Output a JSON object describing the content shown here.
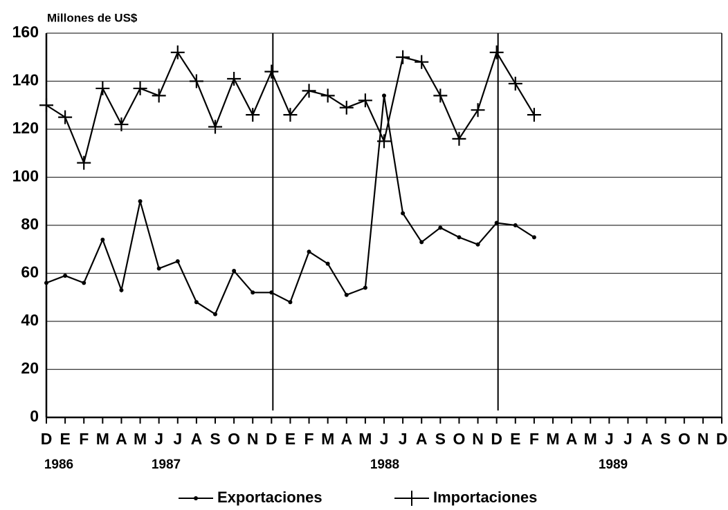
{
  "chart_data": {
    "type": "line",
    "y_axis_label": "Millones de US$",
    "categories": [
      "D",
      "E",
      "F",
      "M",
      "A",
      "M",
      "J",
      "J",
      "A",
      "S",
      "O",
      "N",
      "D",
      "E",
      "F",
      "M",
      "A",
      "M",
      "J",
      "J",
      "A",
      "S",
      "O",
      "N",
      "D",
      "E",
      "F",
      "M",
      "A",
      "M",
      "J",
      "J",
      "A",
      "S",
      "O",
      "N",
      "D"
    ],
    "x_groups": [
      "1986",
      "1987",
      "1988",
      "1989"
    ],
    "series": [
      {
        "name": "Exportaciones",
        "color": "#000000",
        "marker": "dot",
        "values": [
          56,
          59,
          56,
          74,
          53,
          90,
          62,
          65,
          48,
          43,
          61,
          52,
          52,
          48,
          69,
          64,
          51,
          54,
          134,
          85,
          73,
          79,
          75,
          72,
          81,
          80,
          75,
          null,
          null,
          null,
          null,
          null,
          null,
          null,
          null,
          null,
          null
        ]
      },
      {
        "name": "Importaciones",
        "color": "#000000",
        "marker": "plus",
        "values": [
          130,
          125,
          106,
          137,
          122,
          137,
          134,
          152,
          140,
          121,
          141,
          126,
          144,
          126,
          136,
          134,
          129,
          132,
          115,
          150,
          148,
          134,
          116,
          128,
          152,
          139,
          126,
          null,
          null,
          null,
          null,
          null,
          null,
          null,
          null,
          null,
          null
        ]
      }
    ],
    "ylim": [
      0,
      160
    ],
    "yticks": [
      0,
      20,
      40,
      60,
      80,
      100,
      120,
      140,
      160
    ],
    "grid": true
  }
}
